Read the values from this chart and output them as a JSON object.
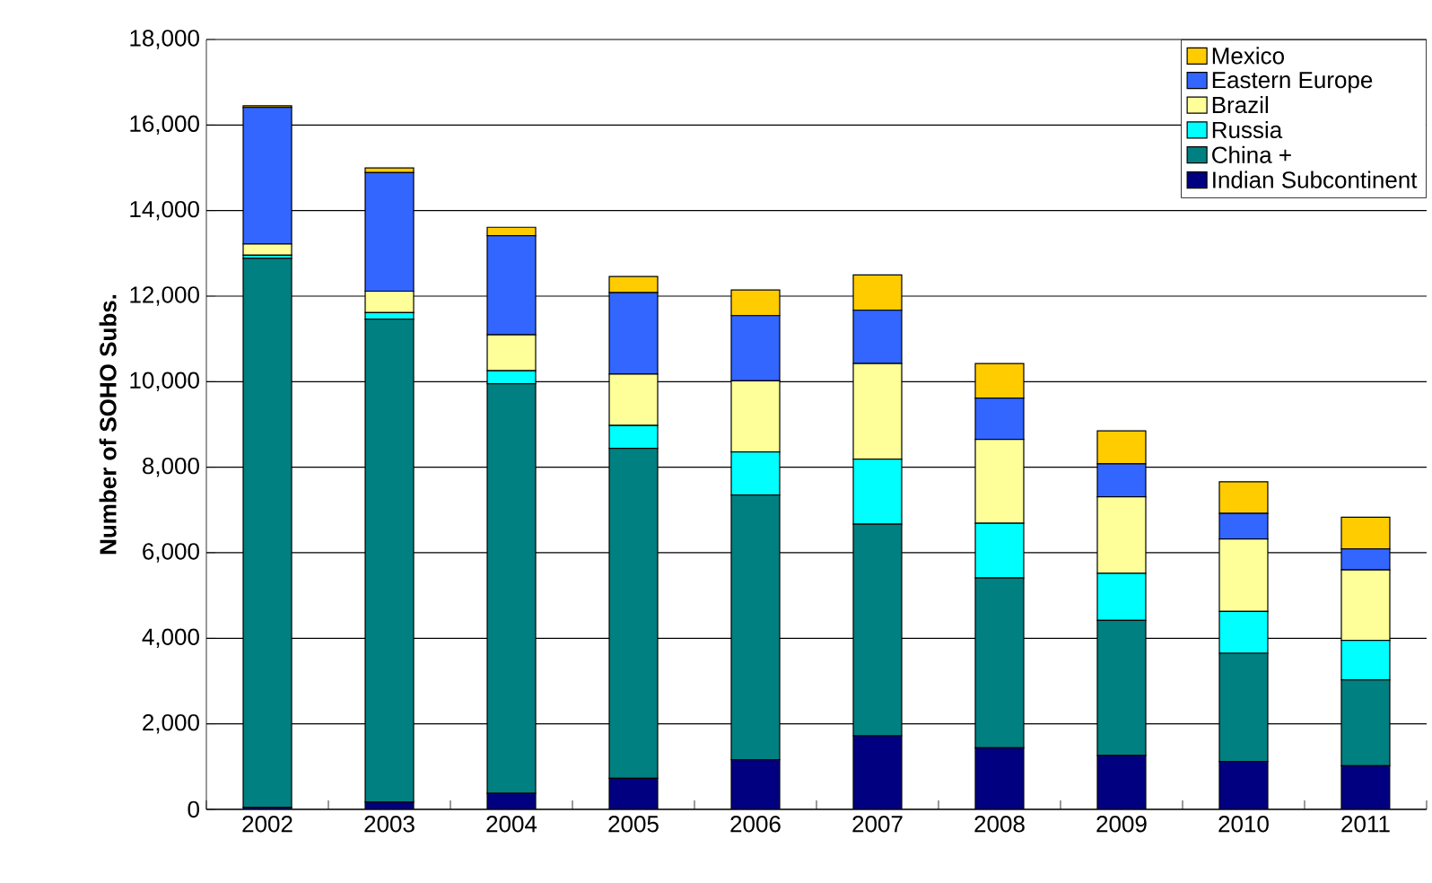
{
  "chart_data": {
    "type": "bar",
    "stacked": true,
    "ylabel": "Number of SOHO Subs.",
    "categories": [
      "2002",
      "2003",
      "2004",
      "2005",
      "2006",
      "2007",
      "2008",
      "2009",
      "2010",
      "2011"
    ],
    "series": [
      {
        "name": "Indian Subcontinent",
        "color": "#000080",
        "values": [
          50,
          170,
          375,
          725,
          1160,
          1720,
          1440,
          1260,
          1120,
          1020
        ]
      },
      {
        "name": "China +",
        "color": "#008080",
        "values": [
          12835,
          11290,
          9575,
          7715,
          6190,
          4947,
          3970,
          3160,
          2530,
          2010
        ]
      },
      {
        "name": "Russia",
        "color": "#00ffff",
        "values": [
          70,
          155,
          305,
          535,
          1005,
          1522,
          1280,
          1100,
          980,
          920
        ]
      },
      {
        "name": "Brazil",
        "color": "#ffff99",
        "values": [
          265,
          500,
          840,
          1200,
          1665,
          2235,
          1960,
          1790,
          1690,
          1650
        ]
      },
      {
        "name": "Eastern Europe",
        "color": "#3366ff",
        "values": [
          3190,
          2770,
          2320,
          1905,
          1523,
          1245,
          965,
          770,
          600,
          490
        ]
      },
      {
        "name": "Mexico",
        "color": "#ffcc00",
        "values": [
          40,
          110,
          195,
          380,
          600,
          826,
          810,
          770,
          740,
          740
        ]
      }
    ],
    "ylim": [
      0,
      18000
    ],
    "yticks": [
      {
        "value": 0,
        "label": "0"
      },
      {
        "value": 2000,
        "label": "2,000"
      },
      {
        "value": 4000,
        "label": "4,000"
      },
      {
        "value": 6000,
        "label": "6,000"
      },
      {
        "value": 8000,
        "label": "8,000"
      },
      {
        "value": 10000,
        "label": "10,000"
      },
      {
        "value": 12000,
        "label": "12,000"
      },
      {
        "value": 14000,
        "label": "14,000"
      },
      {
        "value": 16000,
        "label": "16,000"
      },
      {
        "value": 18000,
        "label": "18,000"
      }
    ],
    "grid": "y",
    "legend": "top right"
  }
}
